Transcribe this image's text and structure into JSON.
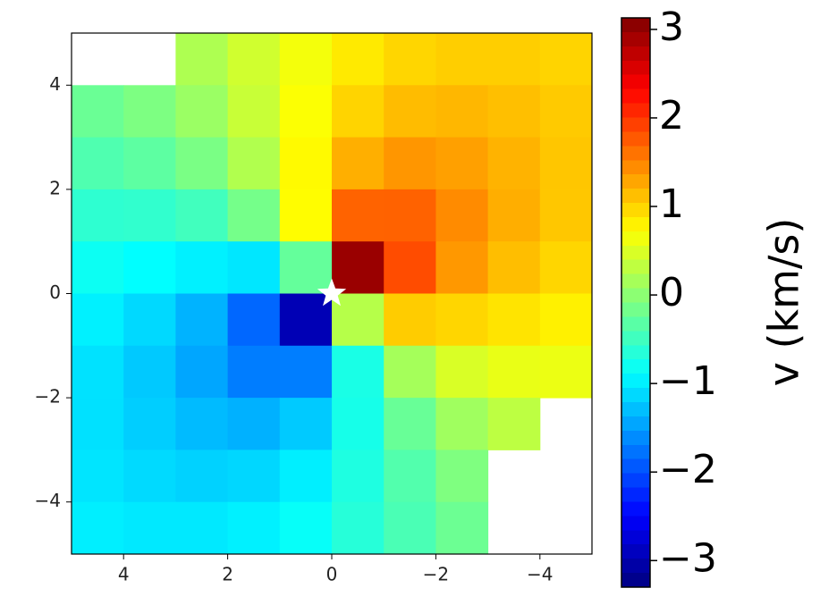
{
  "chart_data": {
    "type": "heatmap",
    "colormap": "jet",
    "x": [
      4.5,
      3.5,
      2.5,
      1.5,
      0.5,
      -0.5,
      -1.5,
      -2.5,
      -3.5,
      -4.5
    ],
    "y": [
      4.5,
      3.5,
      2.5,
      1.5,
      0.5,
      -0.5,
      -1.5,
      -2.5,
      -3.5,
      -4.5
    ],
    "z": [
      [
        null,
        null,
        0.21,
        0.42,
        0.65,
        0.85,
        0.98,
        1.03,
        1.03,
        0.99
      ],
      [
        -0.22,
        -0.1,
        0.09,
        0.37,
        0.7,
        0.99,
        1.14,
        1.17,
        1.12,
        1.05
      ],
      [
        -0.39,
        -0.3,
        -0.12,
        0.23,
        0.75,
        1.22,
        1.38,
        1.32,
        1.2,
        1.08
      ],
      [
        -0.6,
        -0.58,
        -0.48,
        -0.15,
        0.73,
        1.7,
        1.71,
        1.45,
        1.23,
        1.07
      ],
      [
        -0.81,
        -0.89,
        -0.98,
        -1.04,
        -0.26,
        2.96,
        1.85,
        1.37,
        1.13,
        0.98
      ],
      [
        -0.98,
        -1.13,
        -1.37,
        -1.85,
        -2.96,
        0.26,
        1.04,
        0.98,
        0.89,
        0.81
      ],
      [
        -1.07,
        -1.23,
        -1.45,
        -1.71,
        -1.7,
        -0.73,
        0.15,
        0.48,
        0.58,
        0.6
      ],
      [
        -1.08,
        -1.2,
        -1.32,
        -1.38,
        -1.22,
        -0.75,
        -0.23,
        0.12,
        0.3,
        null
      ],
      [
        -1.05,
        -1.12,
        -1.17,
        -1.14,
        -0.99,
        -0.7,
        -0.37,
        -0.09,
        null,
        null
      ],
      [
        -0.99,
        -1.03,
        -1.03,
        -0.98,
        -0.85,
        -0.65,
        -0.42,
        -0.21,
        null,
        null
      ]
    ],
    "marker": {
      "x": 0,
      "y": 0
    },
    "xlim": [
      5,
      -5
    ],
    "ylim": [
      -5,
      5
    ],
    "xticks": [
      4,
      2,
      0,
      {
        "value": -2,
        "label": "−2"
      },
      {
        "value": -4,
        "label": "−4"
      }
    ],
    "yticks": [
      {
        "value": -4,
        "label": "−4"
      },
      {
        "value": -2,
        "label": "−2"
      },
      0,
      2,
      4
    ],
    "zlim": [
      -3.3,
      3.13
    ],
    "zticks": [
      {
        "value": -3,
        "label": "−3"
      },
      {
        "value": -2,
        "label": "−2"
      },
      {
        "value": -1,
        "label": "−1"
      },
      0,
      1,
      2,
      3
    ],
    "zlabel": "v (km/s)"
  }
}
